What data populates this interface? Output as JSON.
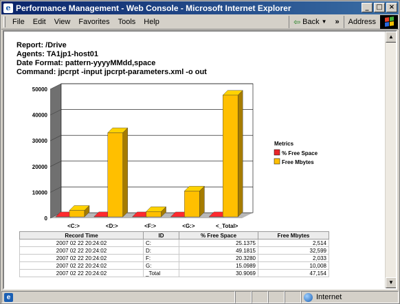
{
  "window": {
    "title": "Performance Management - Web Console - Microsoft Internet Explorer"
  },
  "menu": {
    "items": [
      "File",
      "Edit",
      "View",
      "Favorites",
      "Tools",
      "Help"
    ],
    "back_label": "Back",
    "chevron": "»",
    "address_label": "Address"
  },
  "report": {
    "report_line": "Report: /Drive",
    "agents_line": "Agents: TA1jp1-host01",
    "date_format_line": "Date Format: pattern-yyyyMMdd,space",
    "command_line": "Command: jpcrpt -input jpcrpt-parameters.xml -o out"
  },
  "chart_data": {
    "type": "bar",
    "categories": [
      "<C:>",
      "<D:>",
      "<F:>",
      "<G:>",
      "<_Total>"
    ],
    "series": [
      {
        "name": "% Free Space",
        "values": [
          25.1375,
          49.1815,
          20.328,
          15.0989,
          30.9069
        ],
        "color": "#e8262a"
      },
      {
        "name": "Free Mbytes",
        "values": [
          2514,
          32599,
          2033,
          10008,
          47154
        ],
        "color": "#ffbf00"
      }
    ],
    "yticks": [
      "0",
      "10000",
      "20000",
      "30000",
      "40000",
      "50000"
    ],
    "ylim": [
      0,
      50000
    ],
    "legend_title": "Metrics",
    "legend_position": "right",
    "grid": true
  },
  "table": {
    "headers": [
      "Record Time",
      "ID",
      "% Free Space",
      "Free Mbytes"
    ],
    "rows": [
      [
        "2007 02 22 20:24:02",
        "C:",
        "25.1375",
        "2,514"
      ],
      [
        "2007 02 22 20:24:02",
        "D:",
        "49.1815",
        "32,599"
      ],
      [
        "2007 02 22 20:24:02",
        "F:",
        "20.3280",
        "2,033"
      ],
      [
        "2007 02 22 20:24:02",
        "G:",
        "15.0989",
        "10,008"
      ],
      [
        "2007 02 22 20:24:02",
        "_Total",
        "30.9069",
        "47,154"
      ]
    ]
  },
  "statusbar": {
    "zone": "Internet"
  }
}
